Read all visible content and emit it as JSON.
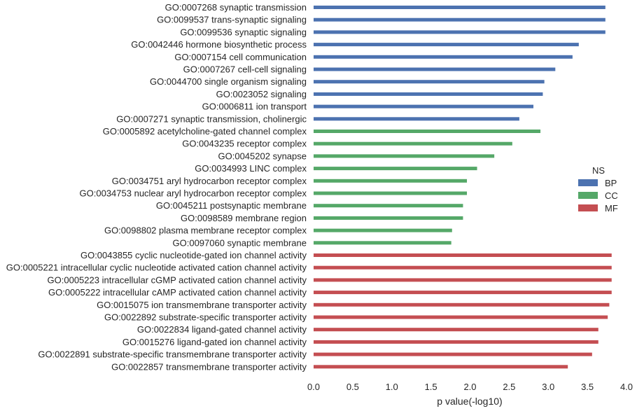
{
  "chart_data": {
    "type": "bar",
    "orientation": "horizontal",
    "xlabel": "p value(-log10)",
    "xlim": [
      0.0,
      4.0
    ],
    "xticks": [
      "0.0",
      "0.5",
      "1.0",
      "1.5",
      "2.0",
      "2.5",
      "3.0",
      "3.5",
      "4.0"
    ],
    "grid": false,
    "legend": {
      "title": "NS",
      "placement": "right",
      "entries": [
        {
          "name": "BP",
          "color": "#4c72b0"
        },
        {
          "name": "CC",
          "color": "#55a868"
        },
        {
          "name": "MF",
          "color": "#c44e52"
        }
      ]
    },
    "categories": [
      "GO:0007268 synaptic transmission",
      "GO:0099537 trans-synaptic signaling",
      "GO:0099536 synaptic signaling",
      "GO:0042446 hormone biosynthetic process",
      "GO:0007154 cell communication",
      "GO:0007267 cell-cell signaling",
      "GO:0044700 single organism signaling",
      "GO:0023052 signaling",
      "GO:0006811 ion transport",
      "GO:0007271 synaptic transmission, cholinergic",
      "GO:0005892 acetylcholine-gated channel complex",
      "GO:0043235 receptor complex",
      "GO:0045202 synapse",
      "GO:0034993 LINC complex",
      "GO:0034751 aryl hydrocarbon receptor complex",
      "GO:0034753 nuclear aryl hydrocarbon receptor complex",
      "GO:0045211 postsynaptic membrane",
      "GO:0098589 membrane region",
      "GO:0098802 plasma membrane receptor complex",
      "GO:0097060 synaptic membrane",
      "GO:0043855 cyclic nucleotide-gated ion channel activity",
      "GO:0005221 intracellular cyclic nucleotide activated cation channel activity",
      "GO:0005223 intracellular cGMP activated cation channel activity",
      "GO:0005222 intracellular cAMP activated cation channel activity",
      "GO:0015075 ion transmembrane transporter activity",
      "GO:0022892 substrate-specific transporter activity",
      "GO:0022834 ligand-gated channel activity",
      "GO:0015276 ligand-gated ion channel activity",
      "GO:0022891 substrate-specific transmembrane transporter activity",
      "GO:0022857 transmembrane transporter activity"
    ],
    "values": [
      3.73,
      3.73,
      3.73,
      3.39,
      3.31,
      3.09,
      2.95,
      2.93,
      2.81,
      2.63,
      2.9,
      2.54,
      2.31,
      2.09,
      1.96,
      1.96,
      1.91,
      1.91,
      1.77,
      1.76,
      3.81,
      3.81,
      3.81,
      3.81,
      3.78,
      3.76,
      3.64,
      3.64,
      3.56,
      3.25
    ],
    "groups": [
      "BP",
      "BP",
      "BP",
      "BP",
      "BP",
      "BP",
      "BP",
      "BP",
      "BP",
      "BP",
      "CC",
      "CC",
      "CC",
      "CC",
      "CC",
      "CC",
      "CC",
      "CC",
      "CC",
      "CC",
      "MF",
      "MF",
      "MF",
      "MF",
      "MF",
      "MF",
      "MF",
      "MF",
      "MF",
      "MF"
    ]
  }
}
